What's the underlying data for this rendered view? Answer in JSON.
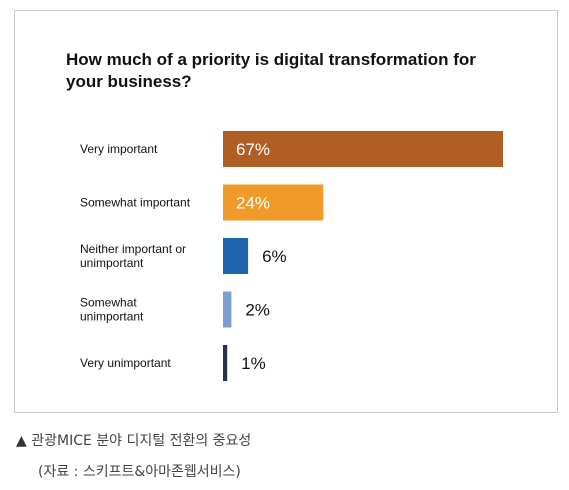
{
  "chart_data": {
    "type": "bar",
    "orientation": "horizontal",
    "title": "How much of a priority is digital transformation for your business?",
    "categories": [
      [
        "Very important"
      ],
      [
        "Somewhat important"
      ],
      [
        "Neither important or",
        "unimportant"
      ],
      [
        "Somewhat",
        "unimportant"
      ],
      [
        "Very unimportant"
      ]
    ],
    "values": [
      67,
      24,
      6,
      2,
      1
    ],
    "value_labels": [
      "67%",
      "24%",
      "6%",
      "2%",
      "1%"
    ],
    "colors": [
      "#b05e23",
      "#f09a2a",
      "#1f65ad",
      "#7b9fd0",
      "#2b3446"
    ],
    "xlim": [
      0,
      67
    ],
    "grid": false,
    "legend": "none"
  },
  "caption": {
    "marker": "▲",
    "line1": "관광MICE 분야 디지털 전환의 중요성",
    "line2": "(자료 : 스키프트&아마존웹서비스)"
  }
}
